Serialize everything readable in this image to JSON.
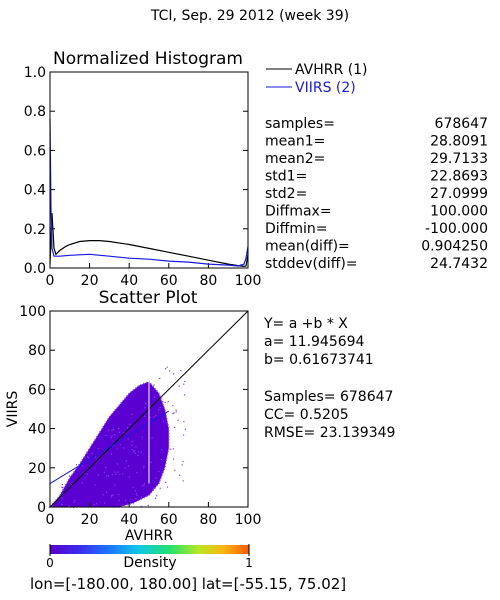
{
  "header": {
    "title": "TCI,  Sep. 29 2012 (week 39)"
  },
  "histogram": {
    "title": "Normalized Histogram",
    "legend": [
      {
        "label": "AVHRR (1)",
        "color": "#000000"
      },
      {
        "label": "VIIRS (2)",
        "color": "#1a1adc"
      }
    ],
    "x_ticks": [
      "0",
      "20",
      "40",
      "60",
      "80",
      "100"
    ],
    "y_ticks": [
      "0.0",
      "0.2",
      "0.4",
      "0.6",
      "0.8",
      "1.0"
    ]
  },
  "stats": [
    {
      "key": "samples=",
      "value": "678647"
    },
    {
      "key": "mean1=",
      "value": "28.8091"
    },
    {
      "key": "mean2=",
      "value": "29.7133"
    },
    {
      "key": "std1=",
      "value": "22.8693"
    },
    {
      "key": "std2=",
      "value": "27.0999"
    },
    {
      "key": "Diffmax=",
      "value": "100.000"
    },
    {
      "key": "Diffmin=",
      "value": "-100.000"
    },
    {
      "key": "mean(diff)=",
      "value": "0.904250"
    },
    {
      "key": "stddev(diff)=",
      "value": "24.7432"
    }
  ],
  "scatter": {
    "title": "Scatter Plot",
    "xlabel": "AVHRR",
    "ylabel": "VIIRS",
    "x_ticks": [
      "0",
      "20",
      "40",
      "60",
      "80",
      "100"
    ],
    "y_ticks": [
      "0",
      "20",
      "40",
      "60",
      "80",
      "100"
    ]
  },
  "regression": {
    "equation": "Y= a +b * X",
    "a_line": "a= 11.945694",
    "b_line": "b= 0.61673741",
    "samples_line": "Samples= 678647",
    "cc_line": "CC=  0.5205",
    "rmse_line": "RMSE= 23.139349"
  },
  "colorbar": {
    "label": "Density",
    "min": "0",
    "max": "1"
  },
  "footer": {
    "text": "lon=[-180.00, 180.00] lat=[-55.15, 75.02]"
  },
  "colors": {
    "viirs": "#1a1adc",
    "scatter": "#5a00d2",
    "scatter_light": "#8a3cf0"
  },
  "chart_data": [
    {
      "type": "line",
      "title": "Normalized Histogram",
      "xlim": [
        0,
        100
      ],
      "ylim": [
        0,
        1
      ],
      "series": [
        {
          "name": "AVHRR (1)",
          "color": "#000000",
          "x": [
            0,
            1,
            2,
            3,
            5,
            8,
            10,
            15,
            20,
            25,
            30,
            40,
            50,
            60,
            70,
            80,
            90,
            95,
            98,
            99,
            100
          ],
          "y": [
            0.02,
            0.28,
            0.1,
            0.07,
            0.09,
            0.11,
            0.12,
            0.135,
            0.14,
            0.14,
            0.135,
            0.12,
            0.1,
            0.08,
            0.06,
            0.04,
            0.02,
            0.012,
            0.008,
            0.01,
            0.07
          ]
        },
        {
          "name": "VIIRS (2)",
          "color": "#1a1adc",
          "x": [
            0,
            0.5,
            1,
            2,
            5,
            10,
            20,
            30,
            40,
            50,
            60,
            70,
            80,
            90,
            95,
            98,
            99,
            100
          ],
          "y": [
            0.76,
            0.3,
            0.1,
            0.06,
            0.06,
            0.065,
            0.07,
            0.06,
            0.05,
            0.045,
            0.035,
            0.03,
            0.02,
            0.015,
            0.01,
            0.02,
            0.05,
            0.11
          ]
        }
      ]
    },
    {
      "type": "scatter",
      "title": "Scatter Plot",
      "xlabel": "AVHRR",
      "ylabel": "VIIRS",
      "xlim": [
        0,
        100
      ],
      "ylim": [
        0,
        100
      ],
      "regression": {
        "a": 11.945694,
        "b": 0.61673741
      },
      "cloud_points": [
        [
          0,
          0
        ],
        [
          2,
          2
        ],
        [
          5,
          6
        ],
        [
          10,
          15
        ],
        [
          15,
          22
        ],
        [
          20,
          30
        ],
        [
          25,
          38
        ],
        [
          30,
          46
        ],
        [
          35,
          52
        ],
        [
          40,
          58
        ],
        [
          45,
          62
        ],
        [
          50,
          64
        ],
        [
          55,
          58
        ],
        [
          58,
          50
        ],
        [
          60,
          40
        ],
        [
          60,
          30
        ],
        [
          58,
          20
        ],
        [
          55,
          12
        ],
        [
          50,
          6
        ],
        [
          42,
          2
        ],
        [
          35,
          0
        ],
        [
          20,
          0
        ],
        [
          10,
          0
        ]
      ]
    }
  ]
}
